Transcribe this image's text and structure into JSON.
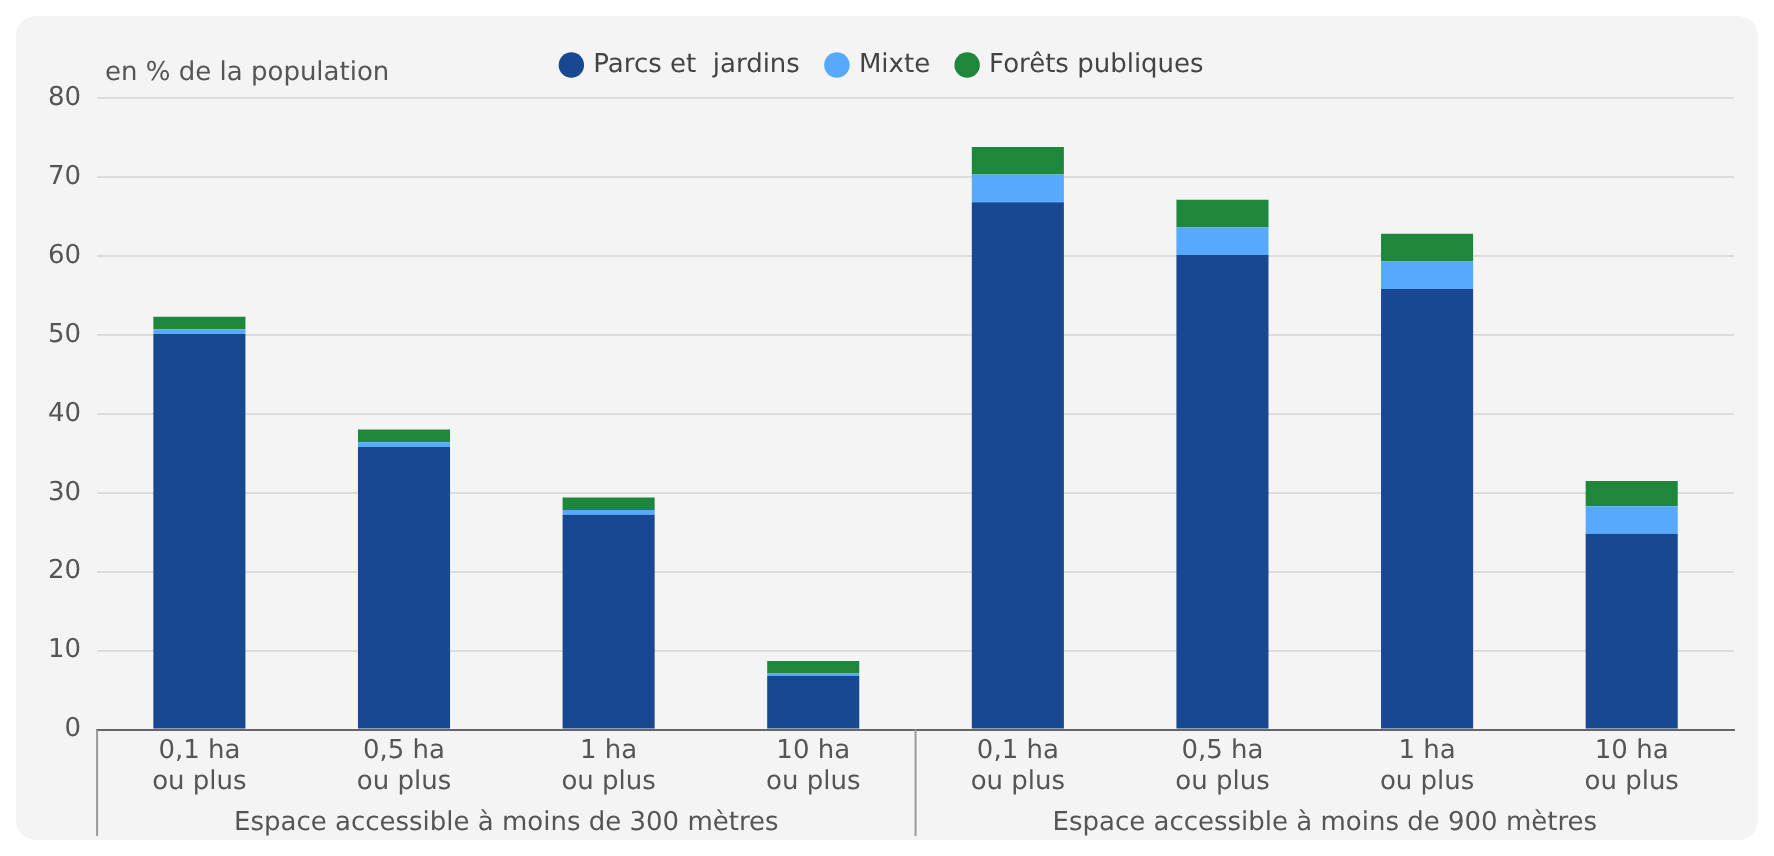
{
  "chart_data": {
    "type": "bar",
    "stacked": true,
    "ylabel": "en % de la population",
    "categories": [
      "0,1 ha\nou plus",
      "0,5 ha\nou plus",
      "1 ha\nou plus",
      "10 ha\nou plus",
      "0,1 ha\nou plus",
      "0,5 ha\nou plus",
      "1 ha\nou plus",
      "10 ha\nou plus"
    ],
    "series": [
      {
        "name": "Parcs et  jardins",
        "color": "#184892",
        "values": [
          50.1,
          35.8,
          27.2,
          6.8,
          66.8,
          60.1,
          55.8,
          24.8
        ]
      },
      {
        "name": "Mixte",
        "color": "#56a9fc",
        "values": [
          0.6,
          0.6,
          0.6,
          0.3,
          3.5,
          3.5,
          3.5,
          3.5
        ]
      },
      {
        "name": "Forêts publiques",
        "color": "#1e873c",
        "values": [
          1.6,
          1.6,
          1.6,
          1.6,
          3.5,
          3.5,
          3.5,
          3.2
        ]
      }
    ],
    "ylim": [
      0,
      80
    ],
    "yticks": [
      0,
      10,
      20,
      30,
      40,
      50,
      60,
      70,
      80
    ],
    "grid": "y",
    "legend": "top",
    "annotations": [
      "Espace accessible à moins de 300 mètres",
      "Espace accessible à moins de 900 mètres"
    ]
  }
}
